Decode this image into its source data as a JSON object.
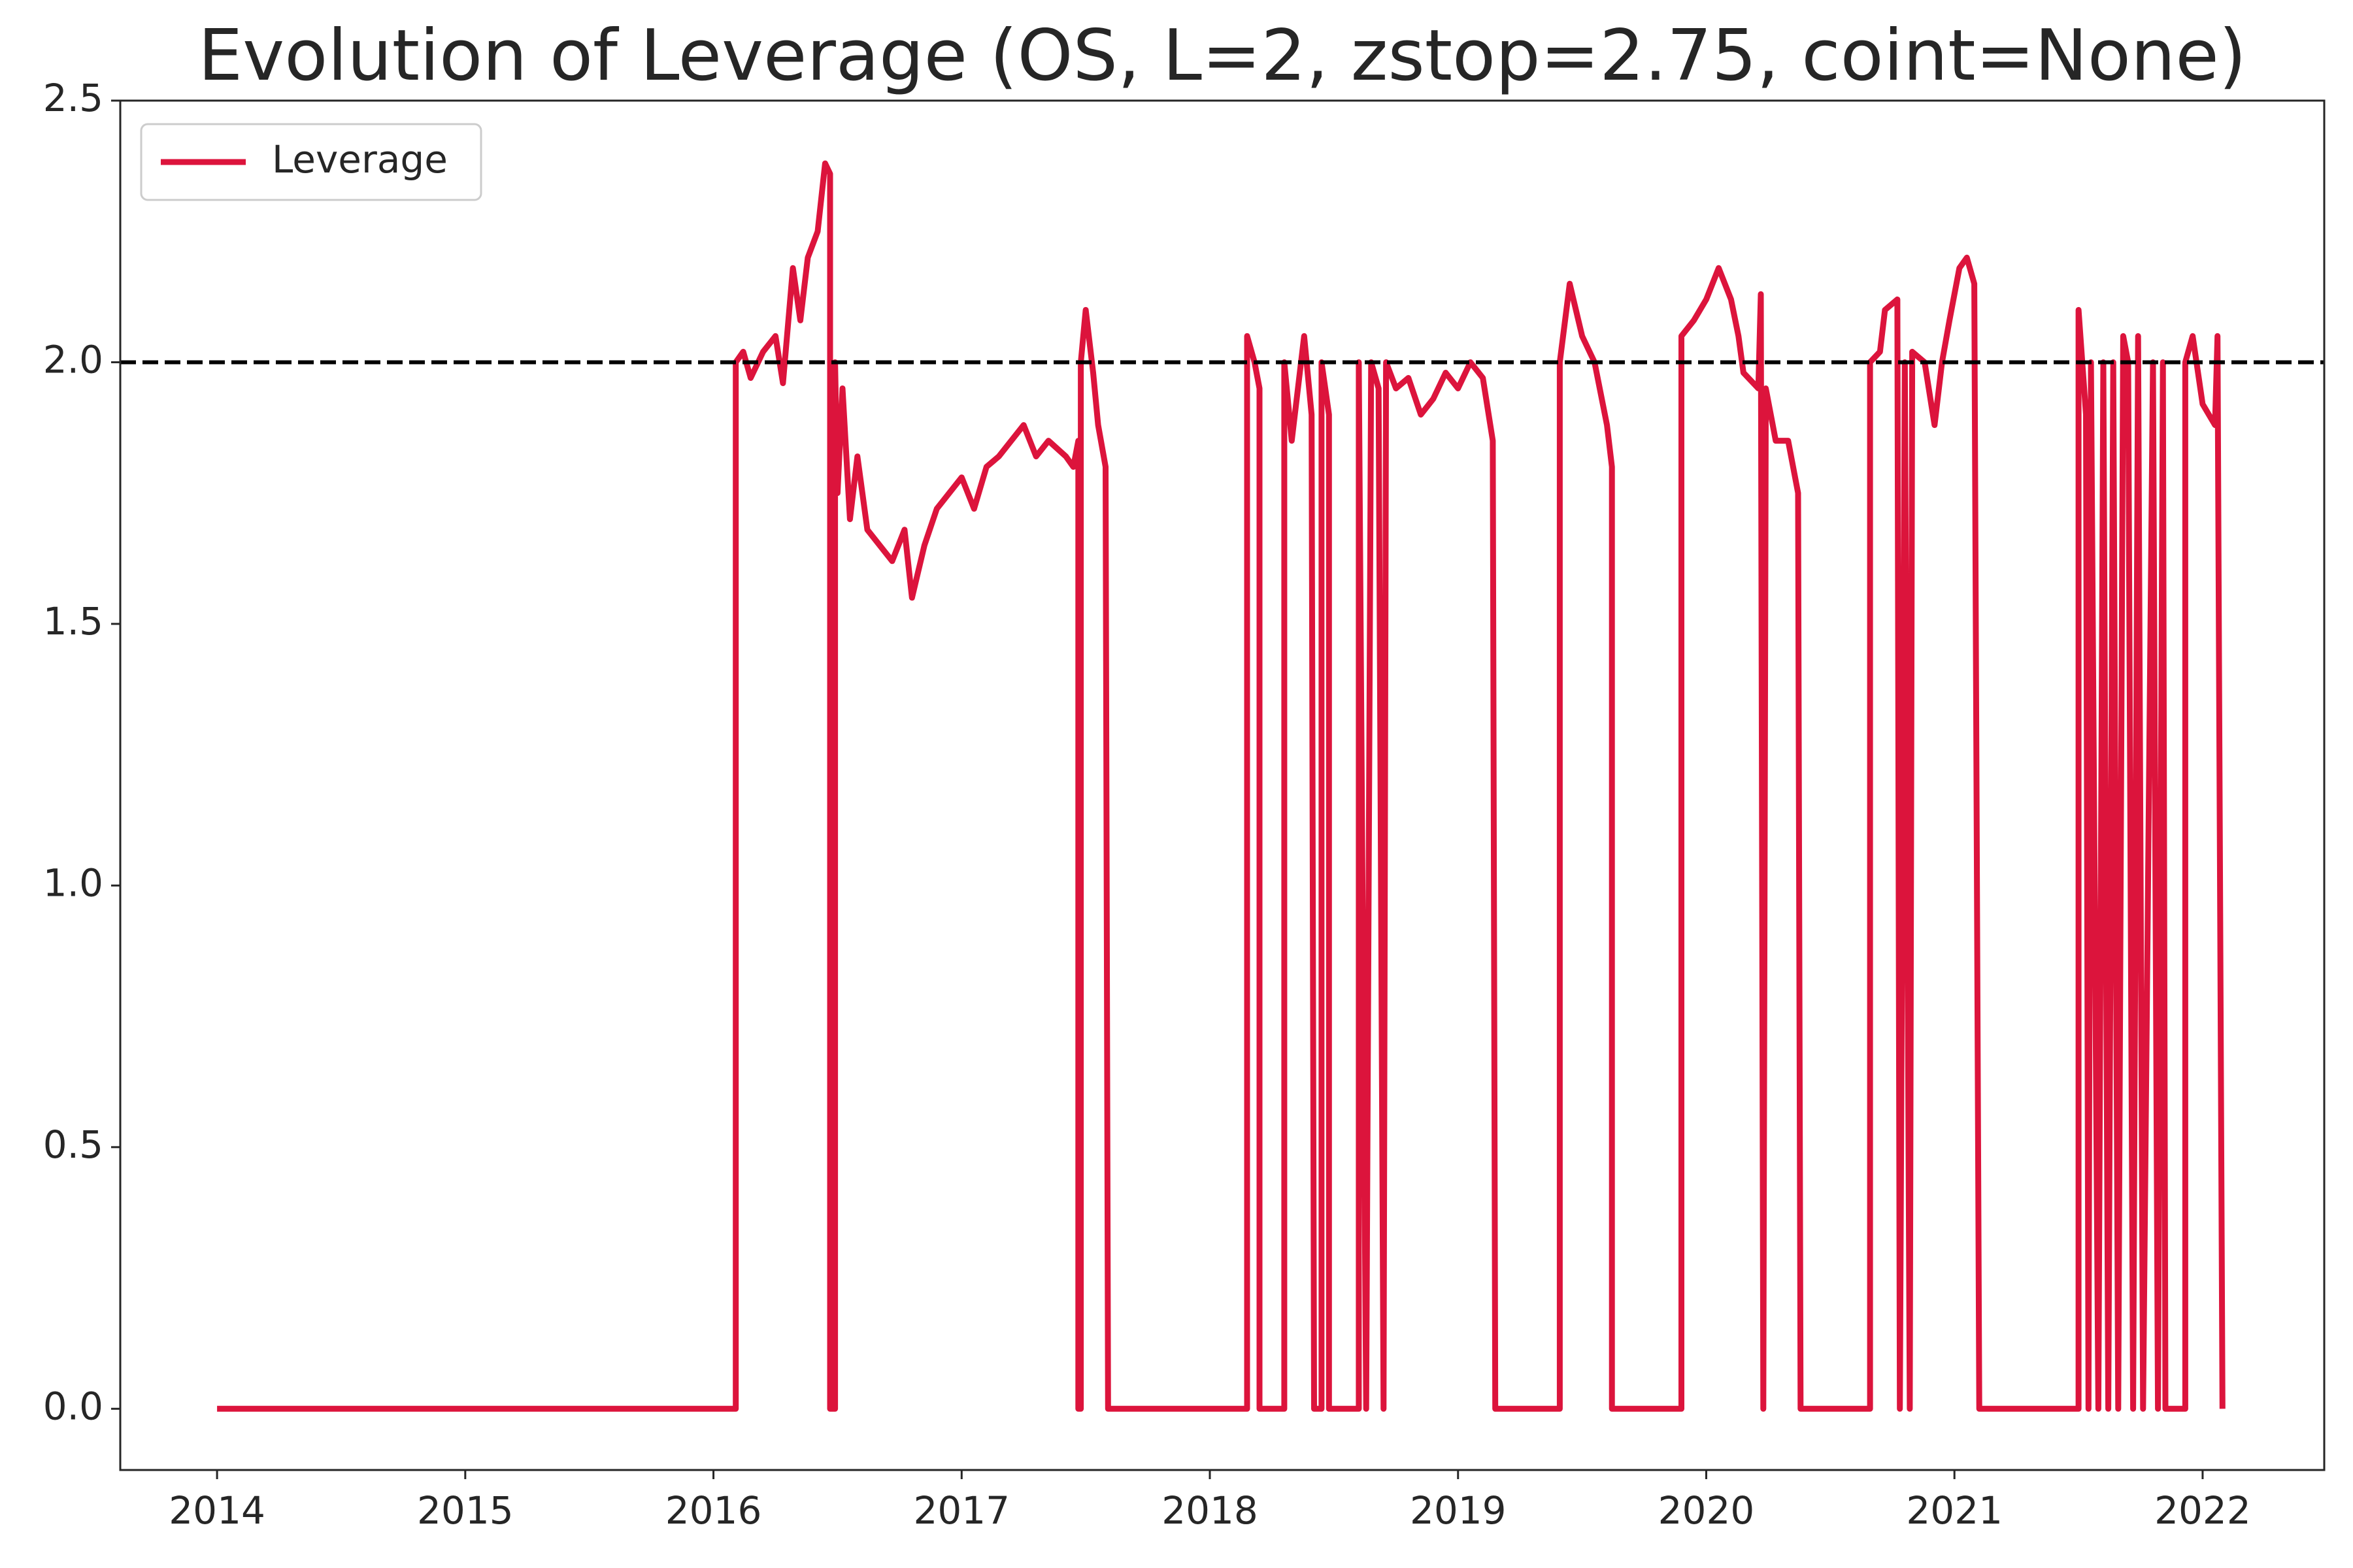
{
  "chart_data": {
    "type": "line",
    "title": "Evolution of Leverage (OS, L=2, zstop=2.75, coint=None)",
    "x": [
      2014.0,
      2016.09,
      2016.09,
      2016.12,
      2016.15,
      2016.2,
      2016.25,
      2016.28,
      2016.32,
      2016.35,
      2016.38,
      2016.42,
      2016.45,
      2016.47,
      2016.47,
      2016.49,
      2016.49,
      2016.5,
      2016.52,
      2016.55,
      2016.58,
      2016.62,
      2016.67,
      2016.72,
      2016.77,
      2016.8,
      2016.85,
      2016.9,
      2016.95,
      2017.0,
      2017.05,
      2017.1,
      2017.15,
      2017.2,
      2017.25,
      2017.3,
      2017.35,
      2017.42,
      2017.45,
      2017.47,
      2017.47,
      2017.48,
      2017.48,
      2017.5,
      2017.53,
      2017.55,
      2017.58,
      2017.59,
      2018.15,
      2018.15,
      2018.18,
      2018.2,
      2018.2,
      2018.3,
      2018.3,
      2018.33,
      2018.38,
      2018.41,
      2018.42,
      2018.45,
      2018.45,
      2018.48,
      2018.48,
      2018.6,
      2018.6,
      2018.63,
      2018.65,
      2018.68,
      2018.7,
      2018.71,
      2018.75,
      2018.8,
      2018.85,
      2018.9,
      2018.95,
      2019.0,
      2019.05,
      2019.1,
      2019.14,
      2019.15,
      2019.41,
      2019.41,
      2019.45,
      2019.5,
      2019.55,
      2019.6,
      2019.62,
      2019.62,
      2019.9,
      2019.9,
      2019.95,
      2020.0,
      2020.05,
      2020.1,
      2020.13,
      2020.15,
      2020.21,
      2020.22,
      2020.23,
      2020.24,
      2020.28,
      2020.33,
      2020.37,
      2020.38,
      2020.66,
      2020.66,
      2020.7,
      2020.72,
      2020.77,
      2020.78,
      2020.8,
      2020.82,
      2020.83,
      2020.88,
      2020.92,
      2020.95,
      2020.98,
      2021.02,
      2021.05,
      2021.08,
      2021.1,
      2021.5,
      2021.5,
      2021.53,
      2021.54,
      2021.55,
      2021.58,
      2021.6,
      2021.62,
      2021.64,
      2021.66,
      2021.68,
      2021.7,
      2021.72,
      2021.74,
      2021.76,
      2021.8,
      2021.82,
      2021.84,
      2021.85,
      2021.93,
      2021.93,
      2021.96,
      2022.0,
      2022.05,
      2022.06,
      2022.08
    ],
    "series": [
      {
        "name": "Leverage",
        "color": "#dc143c",
        "values": [
          0,
          0,
          2.0,
          2.02,
          1.97,
          2.02,
          2.05,
          1.96,
          2.18,
          2.08,
          2.2,
          2.25,
          2.38,
          2.36,
          0,
          0,
          2.0,
          1.75,
          1.95,
          1.7,
          1.82,
          1.68,
          1.65,
          1.62,
          1.68,
          1.55,
          1.65,
          1.72,
          1.75,
          1.78,
          1.72,
          1.8,
          1.82,
          1.85,
          1.88,
          1.82,
          1.85,
          1.82,
          1.8,
          1.85,
          0,
          0,
          2.0,
          2.1,
          1.98,
          1.88,
          1.8,
          0,
          0,
          2.05,
          2.0,
          1.95,
          0,
          0,
          2.0,
          1.85,
          2.05,
          1.9,
          0,
          0,
          2.0,
          1.9,
          0,
          0,
          2.0,
          0,
          2.0,
          1.95,
          0,
          2.0,
          1.95,
          1.97,
          1.9,
          1.93,
          1.98,
          1.95,
          2.0,
          1.97,
          1.85,
          0,
          0,
          2.0,
          2.15,
          2.05,
          2.0,
          1.88,
          1.8,
          0,
          0,
          2.05,
          2.08,
          2.12,
          2.18,
          2.12,
          2.05,
          1.98,
          1.95,
          2.13,
          0,
          1.95,
          1.85,
          1.85,
          1.75,
          0,
          0,
          2.0,
          2.02,
          2.1,
          2.12,
          0,
          2.0,
          0,
          2.02,
          2.0,
          1.88,
          2.0,
          2.08,
          2.18,
          2.2,
          2.15,
          0,
          0,
          2.1,
          1.9,
          0,
          2.0,
          0,
          2.0,
          0,
          2.0,
          0,
          2.05,
          2.0,
          0,
          2.05,
          0,
          2.0,
          0,
          2.0,
          0,
          0,
          2.0,
          2.05,
          1.92,
          1.88,
          2.05,
          0
        ]
      }
    ],
    "hline": 2,
    "xlim": [
      2013.61,
      2022.49
    ],
    "xticks": [
      2014,
      2015,
      2016,
      2017,
      2018,
      2019,
      2020,
      2021,
      2022
    ],
    "ylim": [
      -0.117,
      2.5
    ],
    "yticks": [
      {
        "value": 0,
        "label": "0.0"
      },
      0.5,
      {
        "value": 1,
        "label": "1.0"
      },
      1.5,
      {
        "value": 2,
        "label": "2.0"
      },
      2.5
    ],
    "legend": "upper left"
  }
}
